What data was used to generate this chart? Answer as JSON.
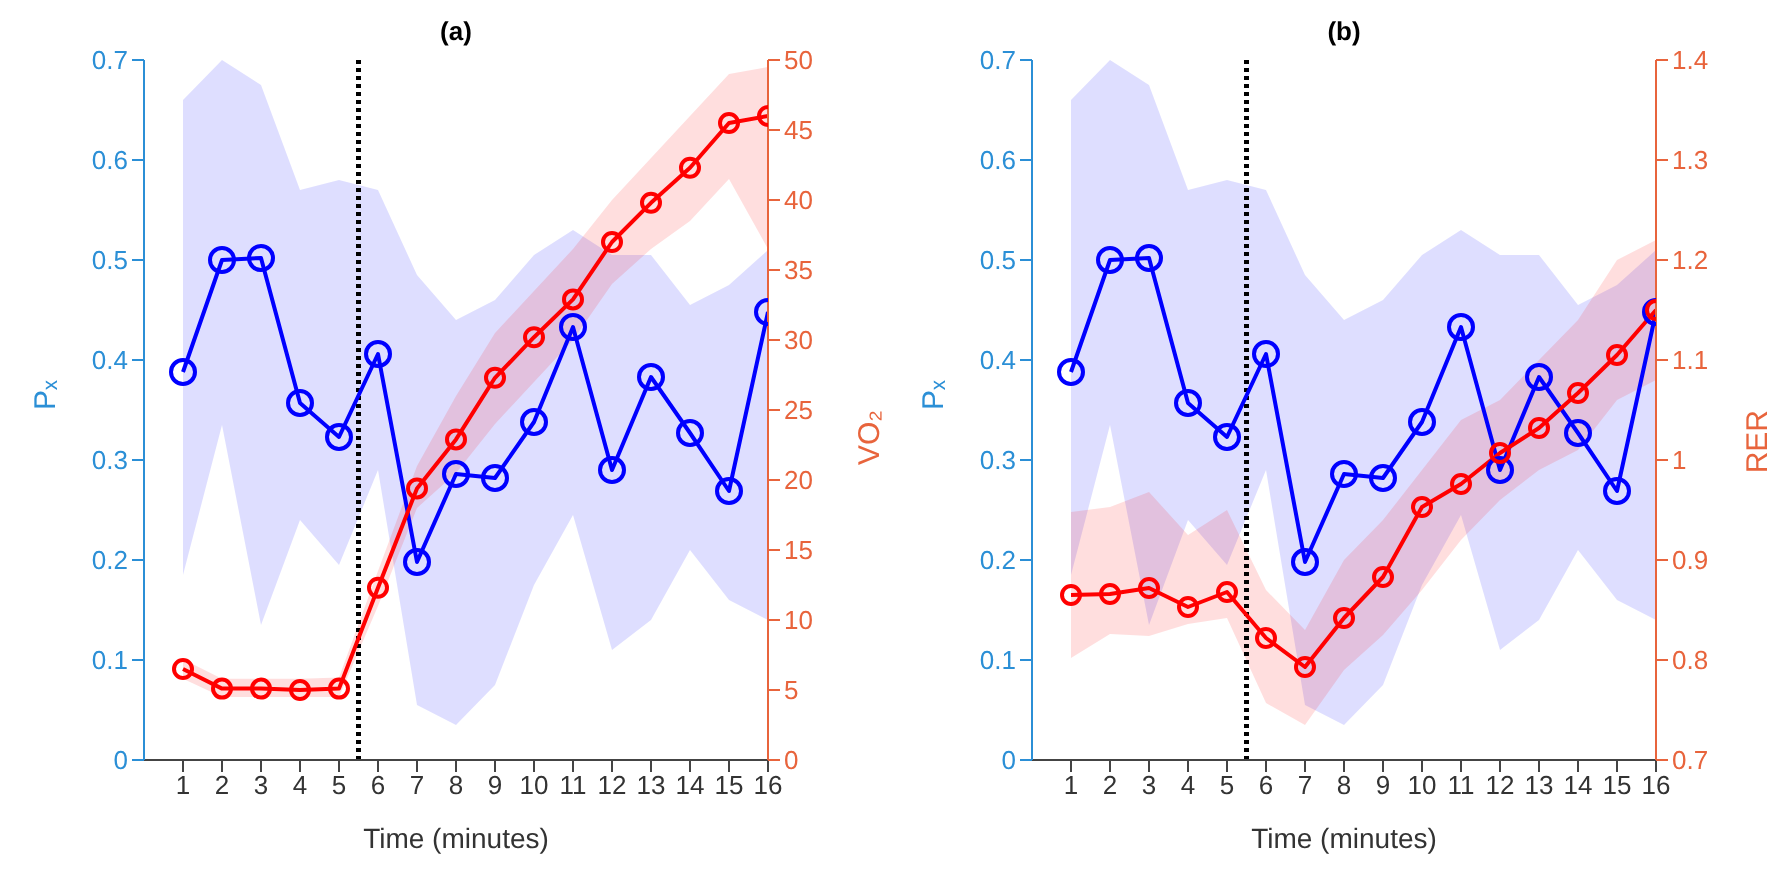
{
  "chart_data": [
    {
      "type": "line",
      "title": "(a)",
      "xlabel": "Time (minutes)",
      "ylabel": "Pₓ",
      "y2label": "VO₂",
      "x": [
        1,
        2,
        3,
        4,
        5,
        6,
        7,
        8,
        9,
        10,
        11,
        12,
        13,
        14,
        15,
        16
      ],
      "xlim": [
        0,
        16
      ],
      "xticks": [
        1,
        2,
        3,
        4,
        5,
        6,
        7,
        8,
        9,
        10,
        11,
        12,
        13,
        14,
        15,
        16
      ],
      "ylim": [
        0,
        0.7
      ],
      "yticks": [
        0,
        0.1,
        0.2,
        0.3,
        0.4,
        0.5,
        0.6,
        0.7
      ],
      "y2lim": [
        0,
        50
      ],
      "y2ticks": [
        0,
        5,
        10,
        15,
        20,
        25,
        30,
        35,
        40,
        45,
        50
      ],
      "marker": "circle",
      "line_style": "solid",
      "grid": false,
      "legend": false,
      "ref_lines": [
        {
          "axis": "x",
          "value": 5.5,
          "color": "#000000",
          "line_style": "dotted"
        }
      ],
      "series": [
        {
          "color": "#0000ff",
          "values": [
            0.388,
            0.5,
            0.502,
            0.357,
            0.323,
            0.406,
            0.198,
            0.286,
            0.282,
            0.338,
            0.433,
            0.29,
            0.383,
            0.327,
            0.269,
            0.448
          ],
          "lower": [
            0.185,
            0.335,
            0.135,
            0.24,
            0.195,
            0.29,
            0.055,
            0.035,
            0.075,
            0.175,
            0.245,
            0.11,
            0.14,
            0.21,
            0.16,
            0.14
          ],
          "upper": [
            0.66,
            0.7,
            0.675,
            0.57,
            0.58,
            0.57,
            0.485,
            0.44,
            0.46,
            0.505,
            0.53,
            0.505,
            0.505,
            0.455,
            0.475,
            0.51
          ]
        },
        {
          "color": "#ff0000",
          "axis": "y2",
          "values": [
            6.5,
            5.1,
            5.1,
            5.0,
            5.1,
            12.3,
            19.4,
            22.9,
            27.3,
            30.2,
            32.9,
            37.0,
            39.8,
            42.3,
            45.5,
            46.0
          ],
          "lower": [
            5.8,
            4.5,
            4.5,
            4.5,
            4.5,
            11,
            18,
            20.5,
            24,
            27,
            30,
            34,
            36.5,
            38.5,
            41.5,
            36.5
          ],
          "upper": [
            7.2,
            5.8,
            5.8,
            5.8,
            5.9,
            13.5,
            21,
            26,
            30.5,
            33.5,
            36.5,
            40,
            43,
            46,
            49,
            49.5
          ]
        }
      ]
    },
    {
      "type": "line",
      "title": "(b)",
      "xlabel": "Time (minutes)",
      "ylabel": "Pₓ",
      "y2label": "RER",
      "x": [
        1,
        2,
        3,
        4,
        5,
        6,
        7,
        8,
        9,
        10,
        11,
        12,
        13,
        14,
        15,
        16
      ],
      "xlim": [
        0,
        16
      ],
      "xticks": [
        1,
        2,
        3,
        4,
        5,
        6,
        7,
        8,
        9,
        10,
        11,
        12,
        13,
        14,
        15,
        16
      ],
      "ylim": [
        0,
        0.7
      ],
      "yticks": [
        0,
        0.1,
        0.2,
        0.3,
        0.4,
        0.5,
        0.6,
        0.7
      ],
      "y2lim": [
        0.7,
        1.4
      ],
      "y2ticks": [
        0.7,
        0.8,
        0.9,
        1,
        1.1,
        1.2,
        1.3,
        1.4
      ],
      "marker": "circle",
      "line_style": "solid",
      "grid": false,
      "legend": false,
      "ref_lines": [
        {
          "axis": "x",
          "value": 5.5,
          "color": "#000000",
          "line_style": "dotted"
        }
      ],
      "series": [
        {
          "color": "#0000ff",
          "values": [
            0.388,
            0.5,
            0.502,
            0.357,
            0.323,
            0.406,
            0.198,
            0.286,
            0.282,
            0.338,
            0.433,
            0.29,
            0.383,
            0.327,
            0.269,
            0.448
          ],
          "lower": [
            0.185,
            0.335,
            0.135,
            0.24,
            0.195,
            0.29,
            0.055,
            0.035,
            0.075,
            0.175,
            0.245,
            0.11,
            0.14,
            0.21,
            0.16,
            0.14
          ],
          "upper": [
            0.66,
            0.7,
            0.675,
            0.57,
            0.58,
            0.57,
            0.485,
            0.44,
            0.46,
            0.505,
            0.53,
            0.505,
            0.505,
            0.455,
            0.475,
            0.51
          ]
        },
        {
          "color": "#ff0000",
          "axis": "y2",
          "values": [
            0.865,
            0.866,
            0.872,
            0.853,
            0.868,
            0.822,
            0.793,
            0.842,
            0.883,
            0.953,
            0.976,
            1.007,
            1.032,
            1.067,
            1.105,
            1.15
          ],
          "lower": [
            0.802,
            0.826,
            0.824,
            0.836,
            0.842,
            0.757,
            0.735,
            0.79,
            0.825,
            0.87,
            0.92,
            0.96,
            0.99,
            1.01,
            1.06,
            1.08
          ],
          "upper": [
            0.948,
            0.953,
            0.968,
            0.925,
            0.95,
            0.87,
            0.83,
            0.9,
            0.94,
            0.99,
            1.04,
            1.06,
            1.1,
            1.14,
            1.2,
            1.22
          ]
        }
      ]
    }
  ]
}
